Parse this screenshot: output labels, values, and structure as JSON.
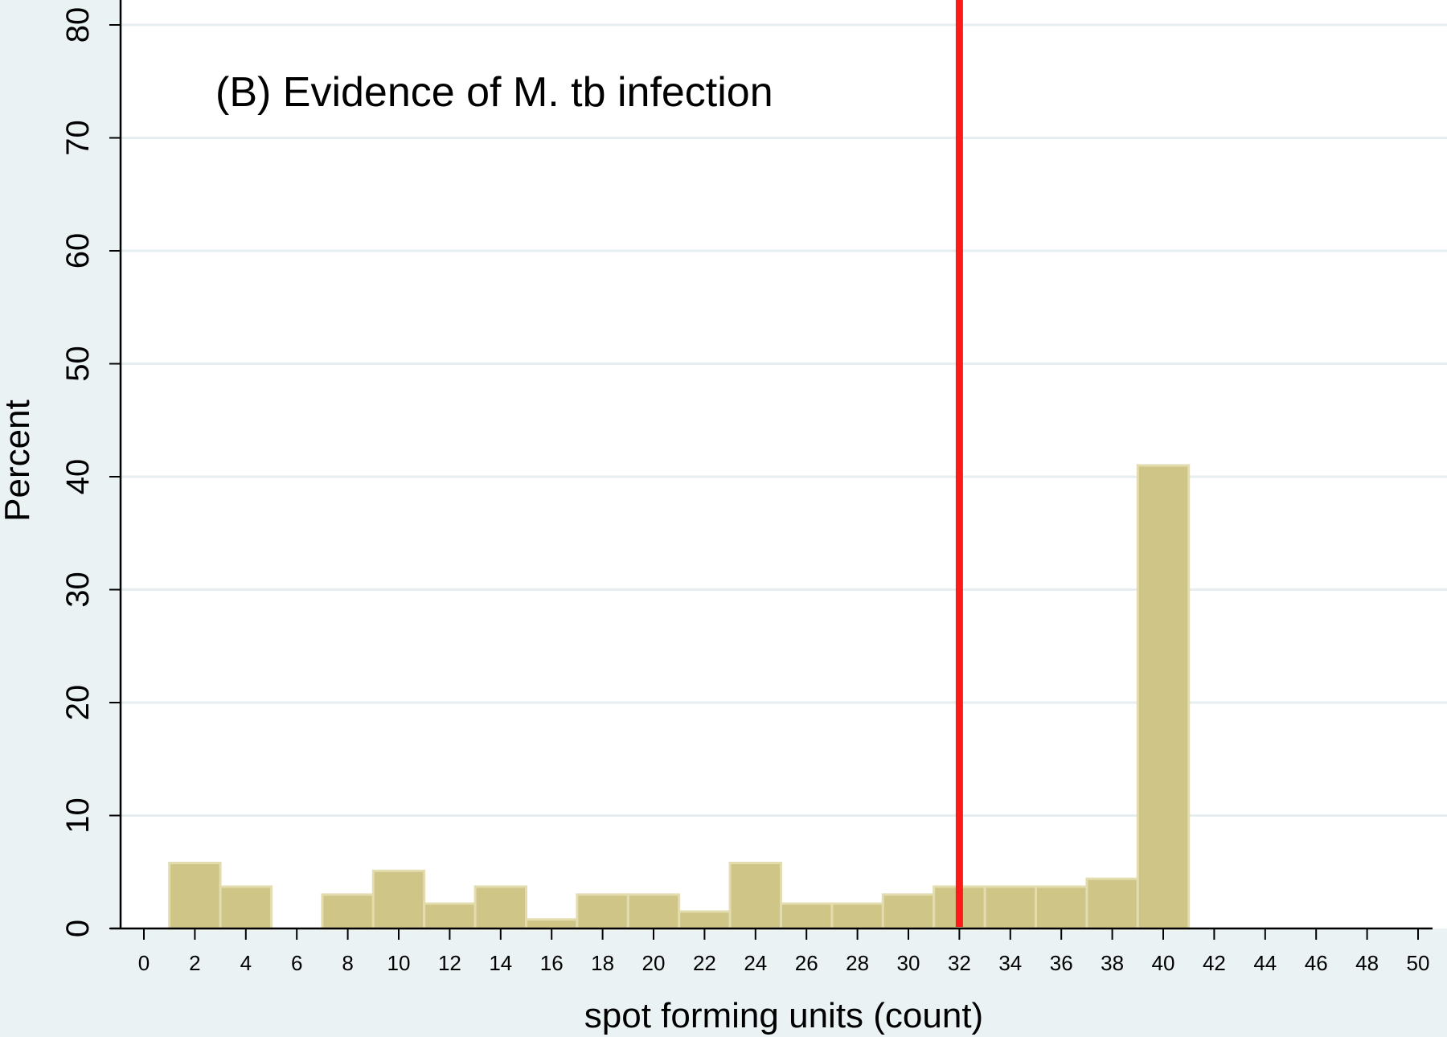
{
  "chart_data": {
    "type": "bar",
    "title": "(B) Evidence of M. tb infection",
    "xlabel": "spot forming units (count)",
    "ylabel": "Percent",
    "xlim": [
      -1,
      51
    ],
    "ylim": [
      0,
      80
    ],
    "x_ticks": [
      0,
      2,
      4,
      6,
      8,
      10,
      12,
      14,
      16,
      18,
      20,
      22,
      24,
      26,
      28,
      30,
      32,
      34,
      36,
      38,
      40,
      42,
      44,
      46,
      48,
      50
    ],
    "y_ticks": [
      0,
      10,
      20,
      30,
      40,
      50,
      60,
      70,
      80
    ],
    "bin_width": 2,
    "bins": [
      {
        "center": 2,
        "value": 5.8
      },
      {
        "center": 4,
        "value": 3.7
      },
      {
        "center": 8,
        "value": 3.0
      },
      {
        "center": 10,
        "value": 5.1
      },
      {
        "center": 12,
        "value": 2.2
      },
      {
        "center": 14,
        "value": 3.7
      },
      {
        "center": 16,
        "value": 0.8
      },
      {
        "center": 18,
        "value": 3.0
      },
      {
        "center": 20,
        "value": 3.0
      },
      {
        "center": 22,
        "value": 1.5
      },
      {
        "center": 24,
        "value": 5.8
      },
      {
        "center": 26,
        "value": 2.2
      },
      {
        "center": 28,
        "value": 2.2
      },
      {
        "center": 30,
        "value": 3.0
      },
      {
        "center": 32,
        "value": 3.7
      },
      {
        "center": 34,
        "value": 3.7
      },
      {
        "center": 36,
        "value": 3.7
      },
      {
        "center": 38,
        "value": 4.4
      },
      {
        "center": 40,
        "value": 41.0
      }
    ],
    "reference_line": {
      "x": 32,
      "color": "#ff1a1a"
    },
    "grid": true,
    "colors": {
      "bar_fill": "#cfc586",
      "bar_edge": "#e3dcae",
      "grid": "#e6eef0",
      "axis": "#000000",
      "background": "#eaf2f3",
      "plot_background": "#ffffff"
    }
  }
}
